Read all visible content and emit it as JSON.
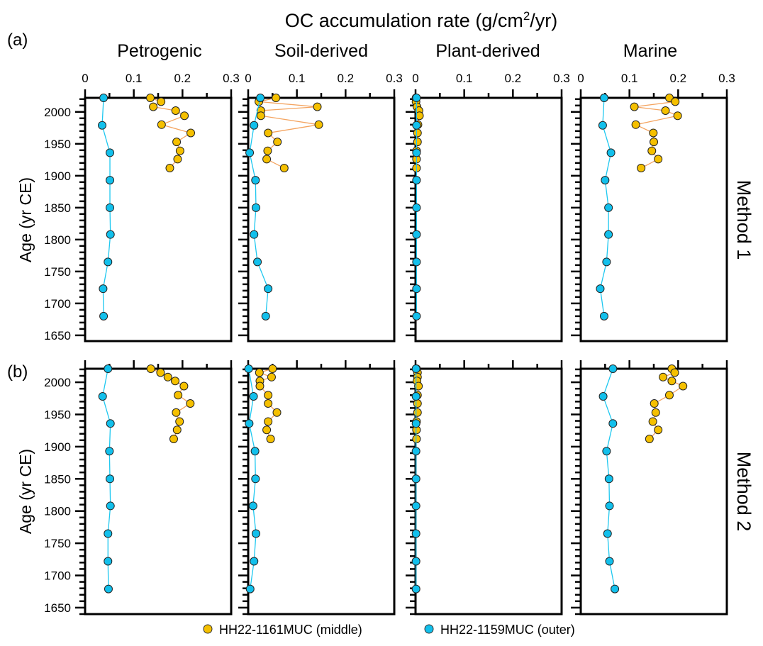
{
  "chart_data": {
    "type": "scatter",
    "title": "OC accumulation rate (g/cm²/yr)",
    "title_parts": {
      "main": "OC accumulation rate (g/cm",
      "sup": "2",
      "tail": "/yr)"
    },
    "xlabel": "OC accumulation rate (g/cm²/yr)",
    "ylabel": "Age (yr CE)",
    "x_range": [
      0,
      0.3
    ],
    "x_ticks": [
      "0",
      "0.1",
      "0.2",
      "0.3"
    ],
    "x_tick_values": [
      0,
      0.1,
      0.2,
      0.3
    ],
    "x_minor_tick_values": [
      0.05,
      0.15,
      0.25
    ],
    "y_ticks": [
      "2000",
      "1950",
      "1900",
      "1850",
      "1800",
      "1750",
      "1700",
      "1650"
    ],
    "y_tick_values": [
      2000,
      1950,
      1900,
      1850,
      1800,
      1750,
      1700,
      1650
    ],
    "y_minor_step": 10,
    "columns": [
      "Petrogenic",
      "Soil-derived",
      "Plant-derived",
      "Marine"
    ],
    "legend": {
      "position": "bottom",
      "entries": [
        {
          "name": "HH22-1161MUC (middle)",
          "color": "#f5c000",
          "line": "#f4a460"
        },
        {
          "name": "HH22-1159MUC (outer)",
          "color": "#12c0ec",
          "line": "#1ec8f0"
        }
      ]
    },
    "rows": [
      {
        "panel_label": "(a)",
        "method_label": "Method 1",
        "y_range": [
          1641,
          2022
        ],
        "panels": [
          {
            "name": "Petrogenic",
            "series": [
              {
                "name": "HH22-1161MUC (middle)",
                "age": [
                  2022,
                  2016,
                  2008,
                  2002,
                  1994,
                  1980,
                  1967,
                  1953,
                  1939,
                  1926,
                  1912
                ],
                "value": [
                  0.134,
                  0.156,
                  0.14,
                  0.186,
                  0.204,
                  0.157,
                  0.217,
                  0.188,
                  0.195,
                  0.19,
                  0.174
                ]
              },
              {
                "name": "HH22-1159MUC (outer)",
                "age": [
                  2022,
                  1979,
                  1936,
                  1893,
                  1850,
                  1808,
                  1765,
                  1723,
                  1680
                ],
                "value": [
                  0.038,
                  0.035,
                  0.051,
                  0.051,
                  0.051,
                  0.052,
                  0.047,
                  0.037,
                  0.038
                ]
              }
            ]
          },
          {
            "name": "Soil-derived",
            "series": [
              {
                "name": "HH22-1161MUC (middle)",
                "age": [
                  2022,
                  2016,
                  2008,
                  2002,
                  1994,
                  1980,
                  1967,
                  1953,
                  1939,
                  1926,
                  1912
                ],
                "value": [
                  0.057,
                  0.022,
                  0.142,
                  0.026,
                  0.026,
                  0.145,
                  0.041,
                  0.06,
                  0.04,
                  0.038,
                  0.074
                ]
              },
              {
                "name": "HH22-1159MUC (outer)",
                "age": [
                  2022,
                  1979,
                  1936,
                  1893,
                  1850,
                  1808,
                  1765,
                  1723,
                  1680
                ],
                "value": [
                  0.025,
                  0.012,
                  0.003,
                  0.015,
                  0.016,
                  0.012,
                  0.019,
                  0.041,
                  0.036
                ]
              }
            ]
          },
          {
            "name": "Plant-derived",
            "series": [
              {
                "name": "HH22-1161MUC (middle)",
                "age": [
                  2022,
                  2016,
                  2008,
                  2002,
                  1994,
                  1980,
                  1967,
                  1953,
                  1939,
                  1926,
                  1912
                ],
                "value": [
                  0.001,
                  0.001,
                  0.003,
                  0.007,
                  0.008,
                  0.005,
                  0.004,
                  0.004,
                  0.002,
                  0.002,
                  0.002
                ]
              },
              {
                "name": "HH22-1159MUC (outer)",
                "age": [
                  2022,
                  1979,
                  1936,
                  1893,
                  1850,
                  1808,
                  1765,
                  1723,
                  1680
                ],
                "value": [
                  0.002,
                  0.002,
                  0.002,
                  0.002,
                  0.002,
                  0.002,
                  0.002,
                  0.002,
                  0.002
                ]
              }
            ]
          },
          {
            "name": "Marine",
            "series": [
              {
                "name": "HH22-1161MUC (middle)",
                "age": [
                  2022,
                  2016,
                  2008,
                  2002,
                  1994,
                  1980,
                  1967,
                  1953,
                  1939,
                  1926,
                  1912
                ],
                "value": [
                  0.182,
                  0.194,
                  0.11,
                  0.174,
                  0.199,
                  0.113,
                  0.149,
                  0.15,
                  0.146,
                  0.159,
                  0.124
                ]
              },
              {
                "name": "HH22-1159MUC (outer)",
                "age": [
                  2022,
                  1979,
                  1936,
                  1893,
                  1850,
                  1808,
                  1765,
                  1723,
                  1680
                ],
                "value": [
                  0.048,
                  0.045,
                  0.062,
                  0.05,
                  0.057,
                  0.057,
                  0.053,
                  0.04,
                  0.048
                ]
              }
            ]
          }
        ]
      },
      {
        "panel_label": "(b)",
        "method_label": "Method 2",
        "y_range": [
          1640,
          2021
        ],
        "panels": [
          {
            "name": "Petrogenic",
            "series": [
              {
                "name": "HH22-1161MUC (middle)",
                "age": [
                  2021,
                  2015,
                  2008,
                  2002,
                  1994,
                  1980,
                  1967,
                  1953,
                  1939,
                  1926,
                  1912
                ],
                "value": [
                  0.135,
                  0.155,
                  0.17,
                  0.185,
                  0.203,
                  0.191,
                  0.216,
                  0.187,
                  0.194,
                  0.189,
                  0.182
                ]
              },
              {
                "name": "HH22-1159MUC (outer)",
                "age": [
                  2021,
                  1978,
                  1936,
                  1893,
                  1850,
                  1808,
                  1765,
                  1722,
                  1679
                ],
                "value": [
                  0.047,
                  0.036,
                  0.052,
                  0.05,
                  0.051,
                  0.052,
                  0.047,
                  0.047,
                  0.048
                ]
              }
            ]
          },
          {
            "name": "Soil-derived",
            "series": [
              {
                "name": "HH22-1161MUC (middle)",
                "age": [
                  2021,
                  2015,
                  2008,
                  2002,
                  1994,
                  1980,
                  1967,
                  1953,
                  1939,
                  1926,
                  1912
                ],
                "value": [
                  0.05,
                  0.023,
                  0.048,
                  0.024,
                  0.024,
                  0.041,
                  0.041,
                  0.059,
                  0.041,
                  0.038,
                  0.046
                ]
              },
              {
                "name": "HH22-1159MUC (outer)",
                "age": [
                  2021,
                  1978,
                  1936,
                  1893,
                  1850,
                  1808,
                  1765,
                  1722,
                  1679
                ],
                "value": [
                  0.001,
                  0.011,
                  0.002,
                  0.014,
                  0.015,
                  0.01,
                  0.016,
                  0.012,
                  0.004
                ]
              }
            ]
          },
          {
            "name": "Plant-derived",
            "series": [
              {
                "name": "HH22-1161MUC (middle)",
                "age": [
                  2021,
                  2015,
                  2008,
                  2002,
                  1994,
                  1980,
                  1967,
                  1953,
                  1939,
                  1926,
                  1912
                ],
                "value": [
                  0.002,
                  0.004,
                  0.004,
                  0.003,
                  0.006,
                  0.004,
                  0.004,
                  0.004,
                  0.002,
                  0.002,
                  0.002
                ]
              },
              {
                "name": "HH22-1159MUC (outer)",
                "age": [
                  2021,
                  1978,
                  1936,
                  1893,
                  1850,
                  1808,
                  1765,
                  1722,
                  1679
                ],
                "value": [
                  0.001,
                  0.001,
                  0.001,
                  0.001,
                  0.001,
                  0.001,
                  0.001,
                  0.001,
                  0.001
                ]
              }
            ]
          },
          {
            "name": "Marine",
            "series": [
              {
                "name": "HH22-1161MUC (middle)",
                "age": [
                  2021,
                  2015,
                  2008,
                  2002,
                  1994,
                  1980,
                  1967,
                  1953,
                  1939,
                  1926,
                  1912
                ],
                "value": [
                  0.187,
                  0.193,
                  0.169,
                  0.187,
                  0.21,
                  0.182,
                  0.151,
                  0.154,
                  0.148,
                  0.159,
                  0.141
                ]
              },
              {
                "name": "HH22-1159MUC (outer)",
                "age": [
                  2021,
                  1978,
                  1936,
                  1893,
                  1850,
                  1808,
                  1765,
                  1722,
                  1679
                ],
                "value": [
                  0.066,
                  0.046,
                  0.066,
                  0.053,
                  0.058,
                  0.059,
                  0.055,
                  0.059,
                  0.07
                ]
              }
            ]
          }
        ]
      }
    ]
  }
}
